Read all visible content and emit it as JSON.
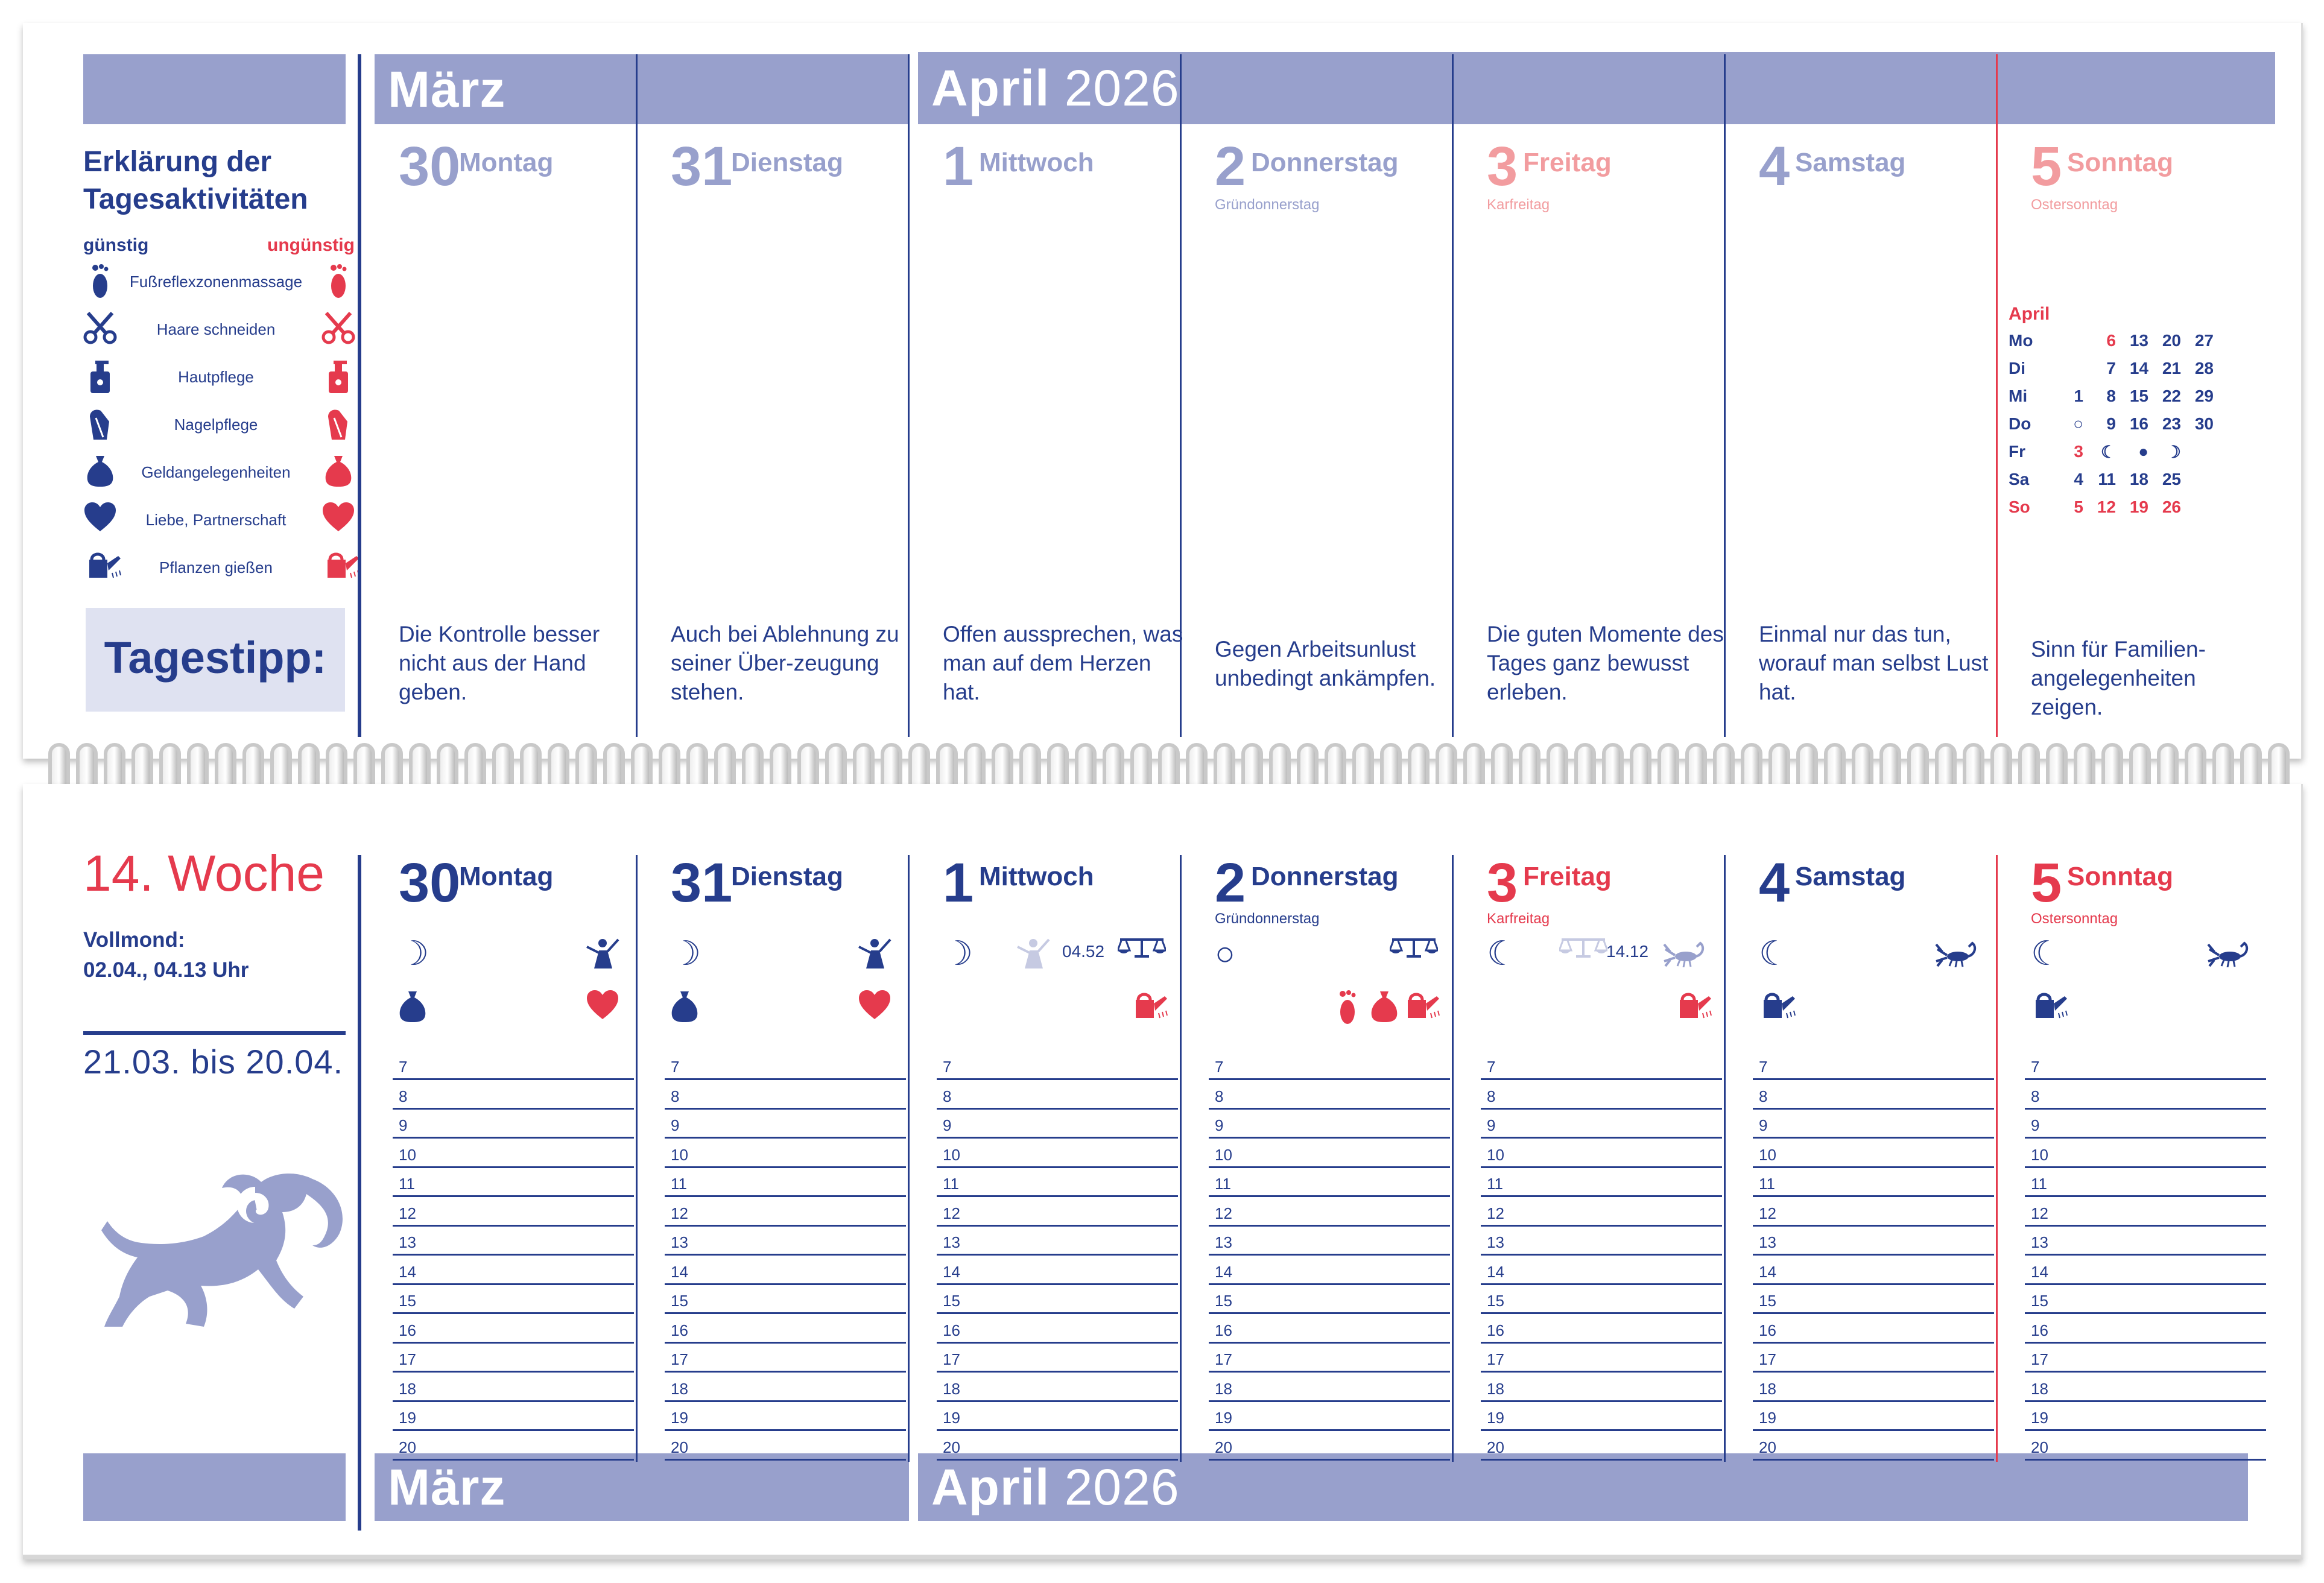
{
  "top": {
    "march_label": "März",
    "april_label": "April",
    "year": "2026",
    "legend": {
      "title_line1": "Erklärung der",
      "title_line2": "Tagesaktivitäten",
      "favorable": "günstig",
      "unfavorable": "ungünstig",
      "items": [
        {
          "label": "Fußreflexzonenmassage",
          "icon": "foot-icon"
        },
        {
          "label": "Haare schneiden",
          "icon": "scissors-icon"
        },
        {
          "label": "Hautpflege",
          "icon": "lotion-bottle-icon"
        },
        {
          "label": "Nagelpflege",
          "icon": "nail-file-icon"
        },
        {
          "label": "Geldangelegenheiten",
          "icon": "money-bag-icon"
        },
        {
          "label": "Liebe, Partnerschaft",
          "icon": "heart-icon"
        },
        {
          "label": "Pflanzen gießen",
          "icon": "watering-can-icon"
        }
      ]
    },
    "tagestipp": "Tagestipp:",
    "days": [
      {
        "num": "30",
        "name": "Montag",
        "holiday": "",
        "tip": "Die Kontrolle besser nicht aus der Hand geben."
      },
      {
        "num": "31",
        "name": "Dienstag",
        "holiday": "",
        "tip": "Auch bei Ablehnung zu seiner Über-zeugung stehen."
      },
      {
        "num": "1",
        "name": "Mittwoch",
        "holiday": "",
        "tip": "Offen aussprechen, was man auf dem Herzen hat."
      },
      {
        "num": "2",
        "name": "Donnerstag",
        "holiday": "Gründonnerstag",
        "tip": "Gegen Arbeitsunlust unbedingt ankämpfen."
      },
      {
        "num": "3",
        "name": "Freitag",
        "holiday": "Karfreitag",
        "tip": "Die guten Momente des Tages ganz bewusst erleben."
      },
      {
        "num": "4",
        "name": "Samstag",
        "holiday": "",
        "tip": "Einmal nur das tun, worauf man selbst Lust hat."
      },
      {
        "num": "5",
        "name": "Sonntag",
        "holiday": "Ostersonntag",
        "tip": "Sinn für Familien-angelegenheiten zeigen."
      }
    ],
    "mini_calendar": {
      "month": "April",
      "rows": [
        {
          "d": "Mo",
          "v": [
            "",
            "6",
            "13",
            "20",
            "27"
          ]
        },
        {
          "d": "Di",
          "v": [
            "",
            "7",
            "14",
            "21",
            "28"
          ]
        },
        {
          "d": "Mi",
          "v": [
            "1",
            "8",
            "15",
            "22",
            "29"
          ]
        },
        {
          "d": "Do",
          "v": [
            "○",
            "9",
            "16",
            "23",
            "30"
          ]
        },
        {
          "d": "Fr",
          "v": [
            "3",
            "☾",
            "●",
            "☽",
            ""
          ]
        },
        {
          "d": "Sa",
          "v": [
            "4",
            "11",
            "18",
            "25",
            ""
          ]
        },
        {
          "d": "So",
          "v": [
            "5",
            "12",
            "19",
            "26",
            ""
          ]
        }
      ]
    }
  },
  "bottom": {
    "week": "14. Woche",
    "fullmoon_label": "Vollmond:",
    "fullmoon_value": "02.04., 04.13 Uhr",
    "zodiac_range": "21.03. bis 20.04.",
    "zodiac_icon": "aries-ram-icon",
    "march_label": "März",
    "april_label": "April",
    "year": "2026",
    "hours": [
      "7",
      "8",
      "9",
      "10",
      "11",
      "12",
      "13",
      "14",
      "15",
      "16",
      "17",
      "18",
      "19",
      "20"
    ],
    "days": [
      {
        "num": "30",
        "name": "Montag",
        "holiday": "",
        "moon": "☽",
        "sign_time": ""
      },
      {
        "num": "31",
        "name": "Dienstag",
        "holiday": "",
        "moon": "☽",
        "sign_time": ""
      },
      {
        "num": "1",
        "name": "Mittwoch",
        "holiday": "",
        "moon": "☽",
        "sign_time": "04.52"
      },
      {
        "num": "2",
        "name": "Donnerstag",
        "holiday": "Gründonnerstag",
        "moon": "○",
        "sign_time": ""
      },
      {
        "num": "3",
        "name": "Freitag",
        "holiday": "Karfreitag",
        "moon": "☾",
        "sign_time": "14.12"
      },
      {
        "num": "4",
        "name": "Samstag",
        "holiday": "",
        "moon": "☾",
        "sign_time": ""
      },
      {
        "num": "5",
        "name": "Sonntag",
        "holiday": "Ostersonntag",
        "moon": "☾",
        "sign_time": ""
      }
    ]
  },
  "colors": {
    "navy": "#263d8c",
    "red": "#e53a4d",
    "lavender": "#98a0cc",
    "pink": "#f29c9f"
  }
}
